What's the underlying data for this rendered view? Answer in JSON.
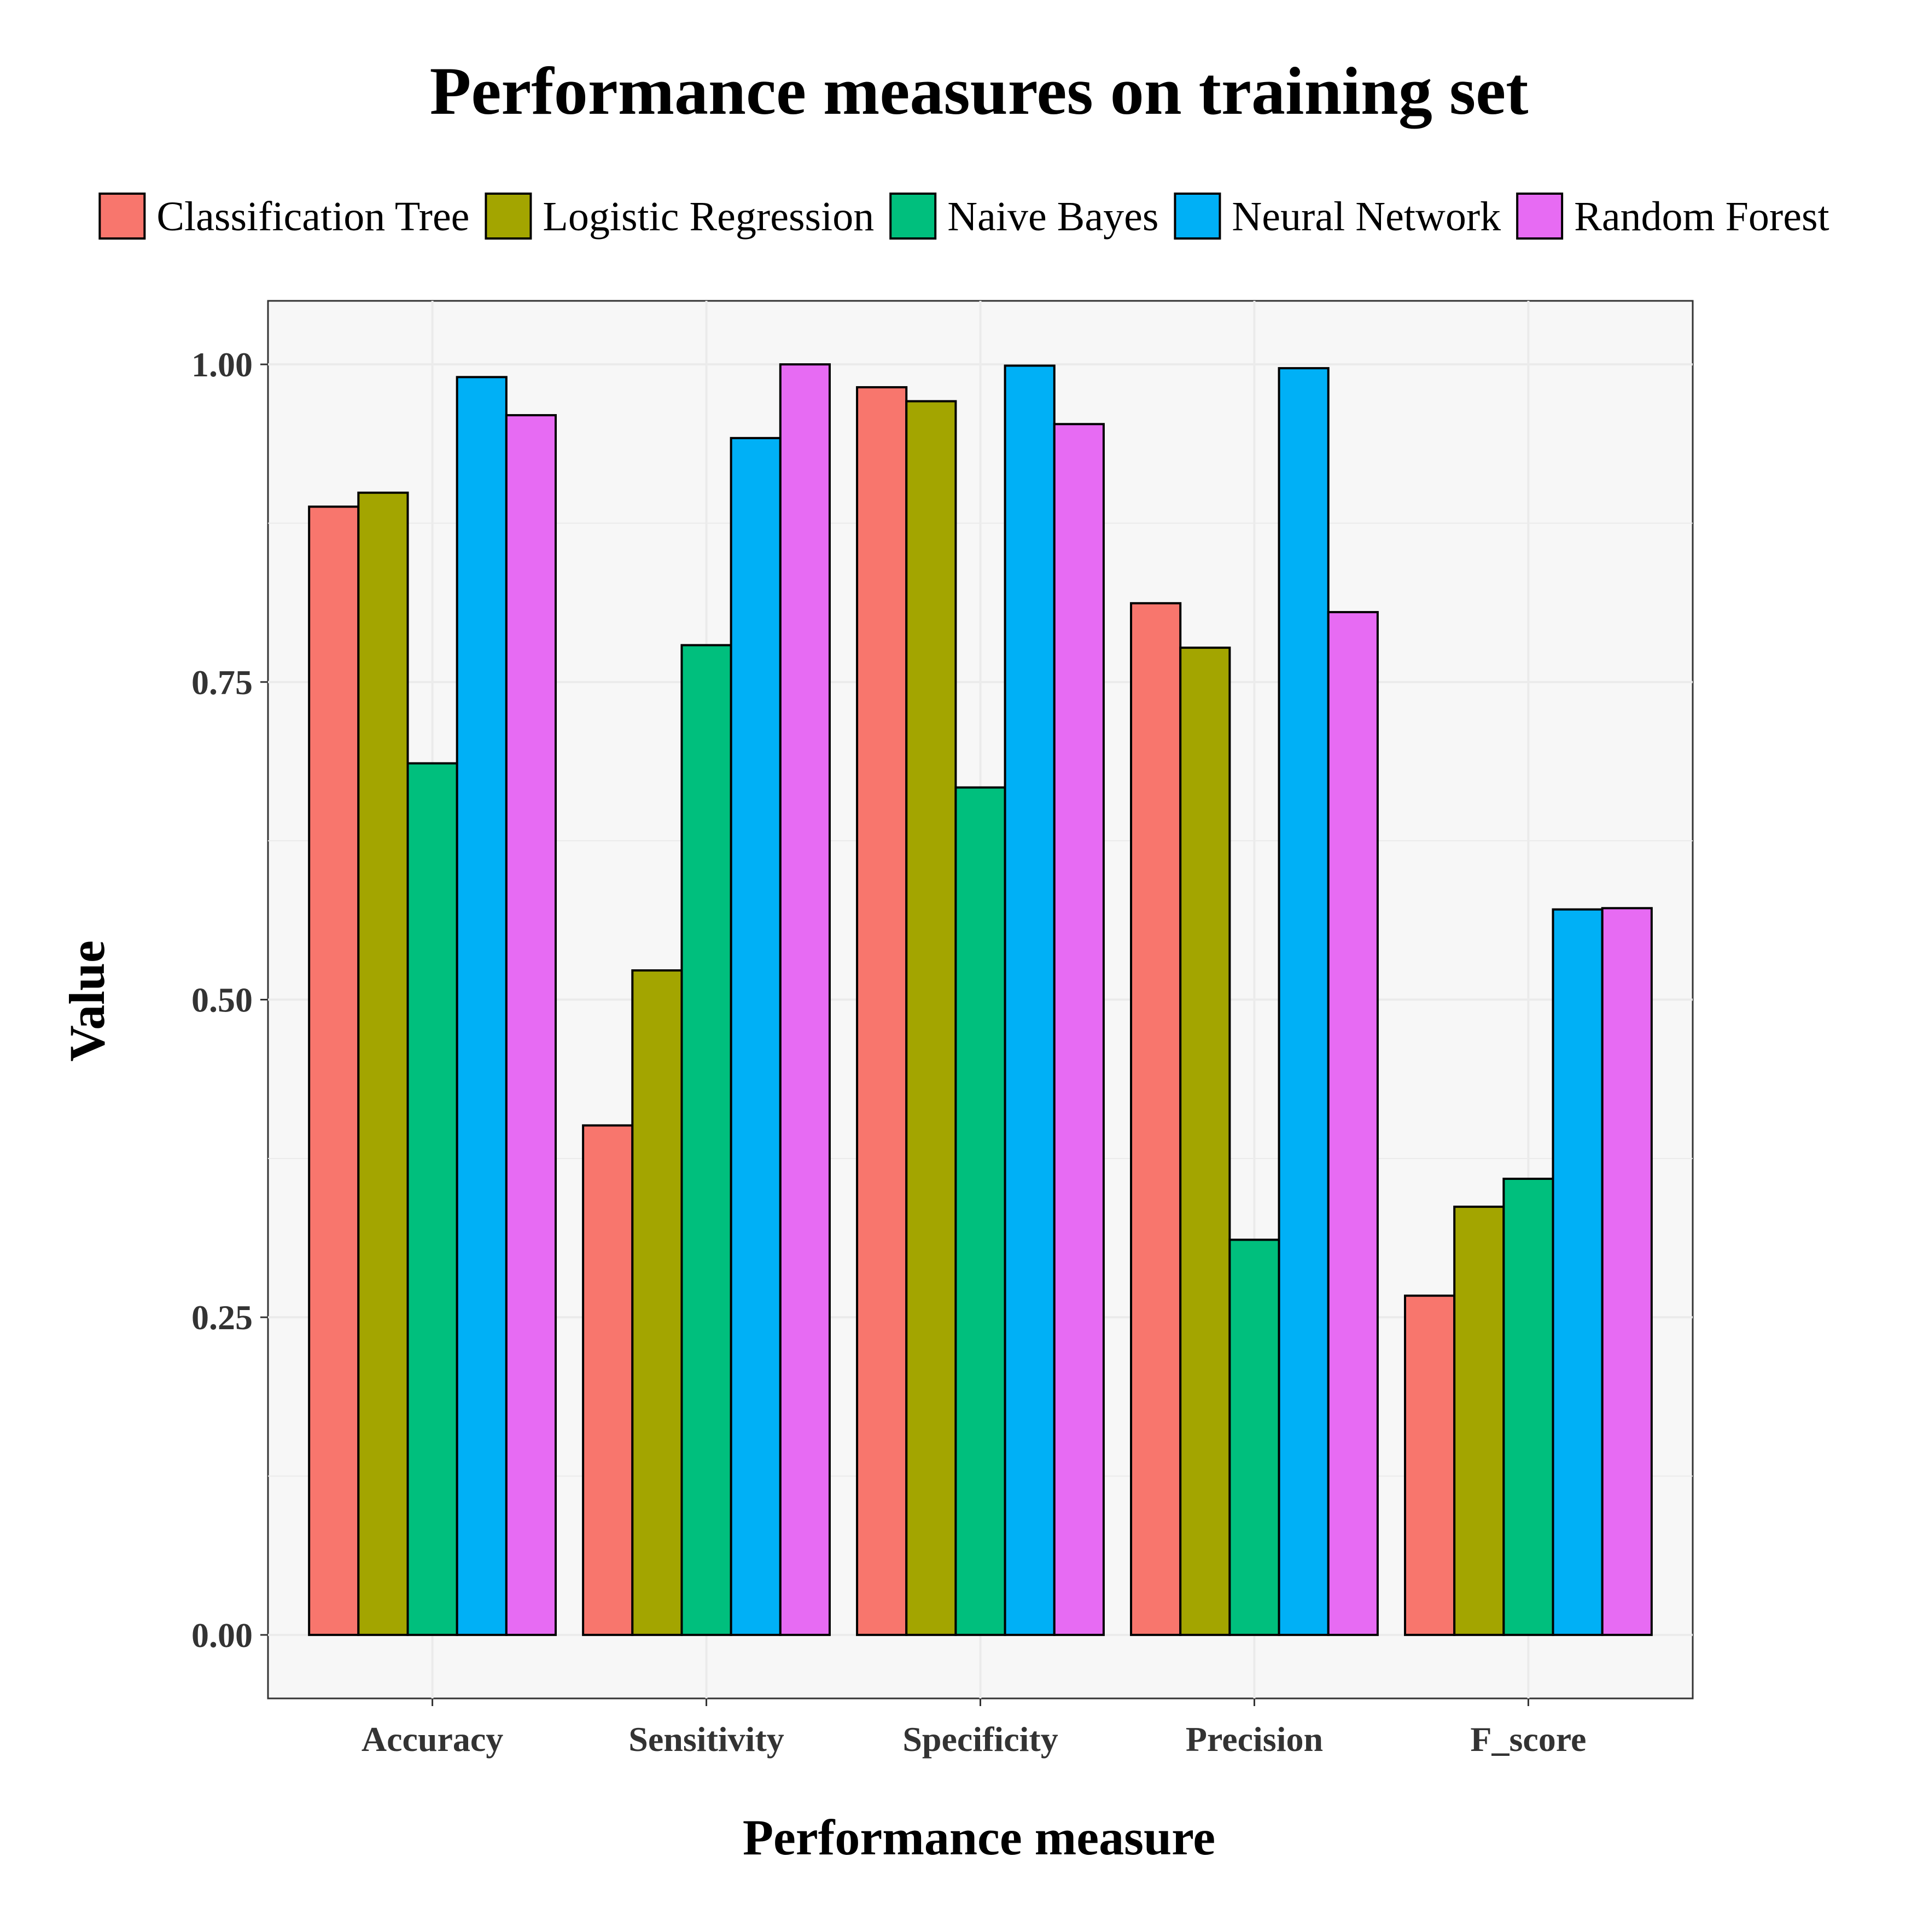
{
  "chart_data": {
    "type": "bar",
    "title": "Performance measures on training set",
    "xlabel": "Performance measure",
    "ylabel": "Value",
    "ylim": [
      -0.05,
      1.05
    ],
    "yticks": [
      "0.00",
      "0.25",
      "0.50",
      "0.75",
      "1.00"
    ],
    "ytick_values": [
      0,
      0.25,
      0.5,
      0.75,
      1.0
    ],
    "categories": [
      "Accuracy",
      "Sensitivity",
      "Specificity",
      "Precision",
      "F_score"
    ],
    "legend_position": "top",
    "grid": true,
    "series": [
      {
        "name": "Classification Tree",
        "color": "#F8766D",
        "values": [
          0.888,
          0.401,
          0.982,
          0.812,
          0.267
        ]
      },
      {
        "name": "Logistic Regression",
        "color": "#A3A500",
        "values": [
          0.899,
          0.523,
          0.971,
          0.777,
          0.337
        ]
      },
      {
        "name": "Naive Bayes",
        "color": "#00BF7D",
        "values": [
          0.686,
          0.779,
          0.667,
          0.311,
          0.359
        ]
      },
      {
        "name": "Neural Network",
        "color": "#00B0F6",
        "values": [
          0.99,
          0.942,
          0.999,
          0.997,
          0.571
        ]
      },
      {
        "name": "Random Forest",
        "color": "#E76BF3",
        "values": [
          0.96,
          1.0,
          0.953,
          0.805,
          0.572
        ]
      }
    ],
    "colors": {
      "panel_background": "#F7F7F7",
      "grid": "#EBEBEB",
      "bar_outline": "#000000"
    }
  }
}
